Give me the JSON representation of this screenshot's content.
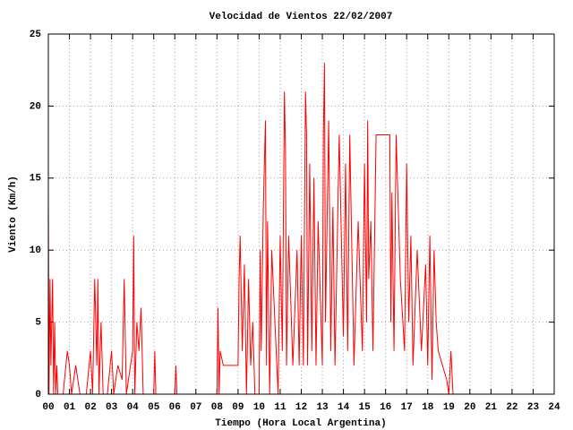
{
  "chart_data": {
    "type": "line",
    "title": "Velocidad de Vientos 22/02/2007",
    "xlabel": "Tiempo (Hora Local Argentina)",
    "ylabel": "Viento (Km/h)",
    "color": "#ff0000",
    "grid": true,
    "xlim": [
      0,
      24
    ],
    "ylim": [
      0,
      25
    ],
    "xticks": [
      {
        "value": 0,
        "label": "00"
      },
      {
        "value": 1,
        "label": "01"
      },
      {
        "value": 2,
        "label": "02"
      },
      {
        "value": 3,
        "label": "03"
      },
      {
        "value": 4,
        "label": "04"
      },
      {
        "value": 5,
        "label": "05"
      },
      {
        "value": 6,
        "label": "06"
      },
      {
        "value": 7,
        "label": "07"
      },
      {
        "value": 8,
        "label": "08"
      },
      {
        "value": 9,
        "label": "09"
      },
      10,
      11,
      12,
      13,
      14,
      15,
      16,
      17,
      18,
      19,
      20,
      21,
      22,
      23,
      24
    ],
    "yticks": [
      0,
      5,
      10,
      15,
      20,
      25
    ],
    "x": [
      0,
      0.03,
      0.08,
      0.12,
      0.2,
      0.25,
      0.3,
      0.35,
      0.4,
      0.45,
      0.5,
      0.7,
      0.9,
      1.0,
      1.1,
      1.3,
      1.5,
      1.8,
      2.0,
      2.1,
      2.2,
      2.3,
      2.35,
      2.4,
      2.5,
      2.6,
      2.8,
      3.0,
      3.1,
      3.3,
      3.5,
      3.6,
      3.7,
      3.9,
      4.0,
      4.05,
      4.1,
      4.2,
      4.3,
      4.4,
      4.5,
      4.7,
      5.0,
      5.05,
      5.1,
      5.5,
      6.0,
      6.05,
      6.1,
      7.0,
      8.0,
      8.05,
      8.1,
      8.15,
      8.3,
      8.5,
      8.7,
      9.0,
      9.05,
      9.1,
      9.2,
      9.3,
      9.4,
      9.5,
      9.6,
      9.7,
      9.8,
      10.0,
      10.05,
      10.1,
      10.2,
      10.3,
      10.35,
      10.4,
      10.5,
      10.6,
      10.9,
      11.0,
      11.1,
      11.2,
      11.25,
      11.3,
      11.4,
      11.6,
      11.8,
      11.9,
      12.0,
      12.1,
      12.2,
      12.25,
      12.3,
      12.4,
      12.5,
      12.6,
      12.7,
      12.8,
      13.0,
      13.05,
      13.1,
      13.15,
      13.3,
      13.4,
      13.5,
      13.6,
      13.8,
      14.0,
      14.1,
      14.2,
      14.3,
      14.5,
      14.7,
      14.9,
      15.0,
      15.1,
      15.15,
      15.2,
      15.3,
      15.4,
      15.55,
      15.6,
      16.2,
      16.25,
      16.3,
      16.4,
      16.5,
      16.7,
      16.9,
      17.0,
      17.1,
      17.2,
      17.3,
      17.5,
      17.7,
      17.9,
      18.0,
      18.1,
      18.2,
      18.3,
      18.4,
      18.5,
      18.7,
      18.9,
      19.0,
      19.1,
      19.2
    ],
    "values": [
      14,
      0,
      8,
      2,
      8,
      0,
      5,
      0,
      2,
      0,
      0,
      0,
      3,
      2,
      0,
      2,
      0,
      0,
      3,
      0,
      8,
      2,
      8,
      0,
      5,
      0,
      0,
      3,
      0,
      2,
      1,
      8,
      0,
      2,
      3,
      11,
      0,
      5,
      3,
      6,
      0,
      0,
      0,
      3,
      0,
      0,
      0,
      2,
      0,
      0,
      0,
      6,
      0,
      3,
      2,
      2,
      2,
      2,
      8,
      11,
      3,
      9,
      0,
      8,
      2,
      5,
      0,
      0,
      10,
      3,
      13,
      19,
      2,
      12,
      0,
      10,
      0,
      11,
      3,
      21,
      17,
      2,
      11,
      2,
      10,
      2,
      11,
      2,
      21,
      18,
      2,
      16,
      3,
      15,
      2,
      12,
      2,
      18,
      23,
      5,
      19,
      3,
      13,
      2,
      18,
      4,
      16,
      3,
      18,
      2,
      12,
      3,
      16,
      5,
      19,
      8,
      12,
      3,
      18,
      18,
      18,
      5,
      14,
      3,
      18,
      8,
      3,
      16,
      5,
      11,
      2,
      10,
      3,
      9,
      2,
      11,
      1,
      10,
      5,
      3,
      2,
      1,
      0,
      3,
      0
    ]
  }
}
